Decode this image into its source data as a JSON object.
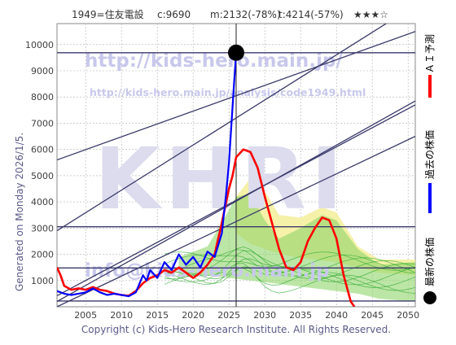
{
  "header": {
    "code_name": "1949=住友電設",
    "current": "c:9690",
    "min_stat": "m:2132(-78%)",
    "target_stat": "t:4214(-57%)",
    "rating": "★★★☆"
  },
  "side_left": "Generated on Monday 2026/1/5.",
  "footer": "Copyright (c) Kids-Hero Research Institute. All Rights Reserved.",
  "watermarks": {
    "url_top": "http://kids-hero.main.jp/",
    "url_analysis": "http://kids-hero.main.jp/analysis/code1949.html",
    "brand": "KHRI",
    "email": "info@kids-hero.main.jp"
  },
  "legend": [
    {
      "label": "ＡＩ予測",
      "color": "#ff0000",
      "kind": "line"
    },
    {
      "label": "過去の株価",
      "color": "#0000ff",
      "kind": "line"
    },
    {
      "label": "最新の株価",
      "color": "#000000",
      "kind": "dot"
    }
  ],
  "colors": {
    "guide_line": "#3a3a6a",
    "green_band": "#8fd66a",
    "green_line": "#2fa82f",
    "yellow_band": "#f5f0a0",
    "grid": "#b0b0b0",
    "text": "#404040",
    "watermark_text": "#c8c8ec",
    "watermark_brand": "#dcdcee"
  },
  "chart_data": {
    "type": "line",
    "x_ticks": [
      2005,
      2010,
      2015,
      2020,
      2025,
      2030,
      2035,
      2040,
      2045,
      2050
    ],
    "y_ticks": [
      1000,
      2000,
      3000,
      4000,
      5000,
      6000,
      7000,
      8000,
      9000,
      10000
    ],
    "xlim": [
      2001,
      2051
    ],
    "ylim": [
      0,
      10800
    ],
    "grid": true,
    "latest_point": {
      "x": 2026.0,
      "y": 9690
    },
    "horizontal_levels": [
      9690,
      3050,
      1480,
      220
    ],
    "vertical_marker_x": 2026.0,
    "diagonal_lines": [
      {
        "x1": 2001,
        "y1": 5600,
        "x2": 2051,
        "y2": 10500
      },
      {
        "x1": 2001,
        "y1": 420,
        "x2": 2051,
        "y2": 7700
      },
      {
        "x1": 2001,
        "y1": 200,
        "x2": 2051,
        "y2": 7850
      },
      {
        "x1": 2001,
        "y1": 0,
        "x2": 2051,
        "y2": 6500
      },
      {
        "x1": 2001,
        "y1": 2900,
        "x2": 2051,
        "y2": 11500
      }
    ],
    "series": [
      {
        "name": "ＡＩ予測",
        "color": "#ff0000",
        "points": [
          [
            2001.0,
            1500
          ],
          [
            2001.5,
            1200
          ],
          [
            2002.0,
            800
          ],
          [
            2003.0,
            650
          ],
          [
            2004.0,
            700
          ],
          [
            2005.0,
            650
          ],
          [
            2006.0,
            750
          ],
          [
            2007.0,
            650
          ],
          [
            2008.0,
            600
          ],
          [
            2009.0,
            500
          ],
          [
            2010.0,
            450
          ],
          [
            2011.0,
            420
          ],
          [
            2012.0,
            600
          ],
          [
            2013.0,
            900
          ],
          [
            2014.0,
            1100
          ],
          [
            2015.0,
            1200
          ],
          [
            2016.0,
            1400
          ],
          [
            2017.0,
            1300
          ],
          [
            2018.0,
            1500
          ],
          [
            2019.0,
            1300
          ],
          [
            2020.0,
            1100
          ],
          [
            2021.0,
            1300
          ],
          [
            2022.0,
            1600
          ],
          [
            2023.0,
            2000
          ],
          [
            2024.0,
            3200
          ],
          [
            2025.0,
            4500
          ],
          [
            2025.5,
            5000
          ],
          [
            2026.0,
            5700
          ],
          [
            2027.0,
            6000
          ],
          [
            2028.0,
            5900
          ],
          [
            2029.0,
            5300
          ],
          [
            2030.0,
            4200
          ],
          [
            2031.0,
            3200
          ],
          [
            2032.0,
            2200
          ],
          [
            2033.0,
            1500
          ],
          [
            2034.0,
            1400
          ],
          [
            2035.0,
            1700
          ],
          [
            2036.0,
            2500
          ],
          [
            2037.0,
            3000
          ],
          [
            2038.0,
            3400
          ],
          [
            2039.0,
            3300
          ],
          [
            2040.0,
            2600
          ],
          [
            2041.0,
            1200
          ],
          [
            2042.0,
            200
          ],
          [
            2042.5,
            0
          ]
        ]
      },
      {
        "name": "過去の株価",
        "color": "#0000ff",
        "points": [
          [
            2001.0,
            600
          ],
          [
            2002.0,
            500
          ],
          [
            2003.0,
            450
          ],
          [
            2004.0,
            500
          ],
          [
            2005.0,
            550
          ],
          [
            2006.0,
            700
          ],
          [
            2007.0,
            550
          ],
          [
            2008.0,
            450
          ],
          [
            2009.0,
            500
          ],
          [
            2010.0,
            450
          ],
          [
            2011.0,
            400
          ],
          [
            2012.0,
            550
          ],
          [
            2013.0,
            1200
          ],
          [
            2013.5,
            1000
          ],
          [
            2014.0,
            1400
          ],
          [
            2015.0,
            1100
          ],
          [
            2016.0,
            1700
          ],
          [
            2017.0,
            1400
          ],
          [
            2018.0,
            2000
          ],
          [
            2019.0,
            1600
          ],
          [
            2020.0,
            1900
          ],
          [
            2021.0,
            1500
          ],
          [
            2022.0,
            2100
          ],
          [
            2023.0,
            1900
          ],
          [
            2024.0,
            2800
          ],
          [
            2024.6,
            4300
          ],
          [
            2025.0,
            5500
          ],
          [
            2025.4,
            7200
          ],
          [
            2025.7,
            8500
          ],
          [
            2026.0,
            9690
          ]
        ]
      }
    ]
  }
}
